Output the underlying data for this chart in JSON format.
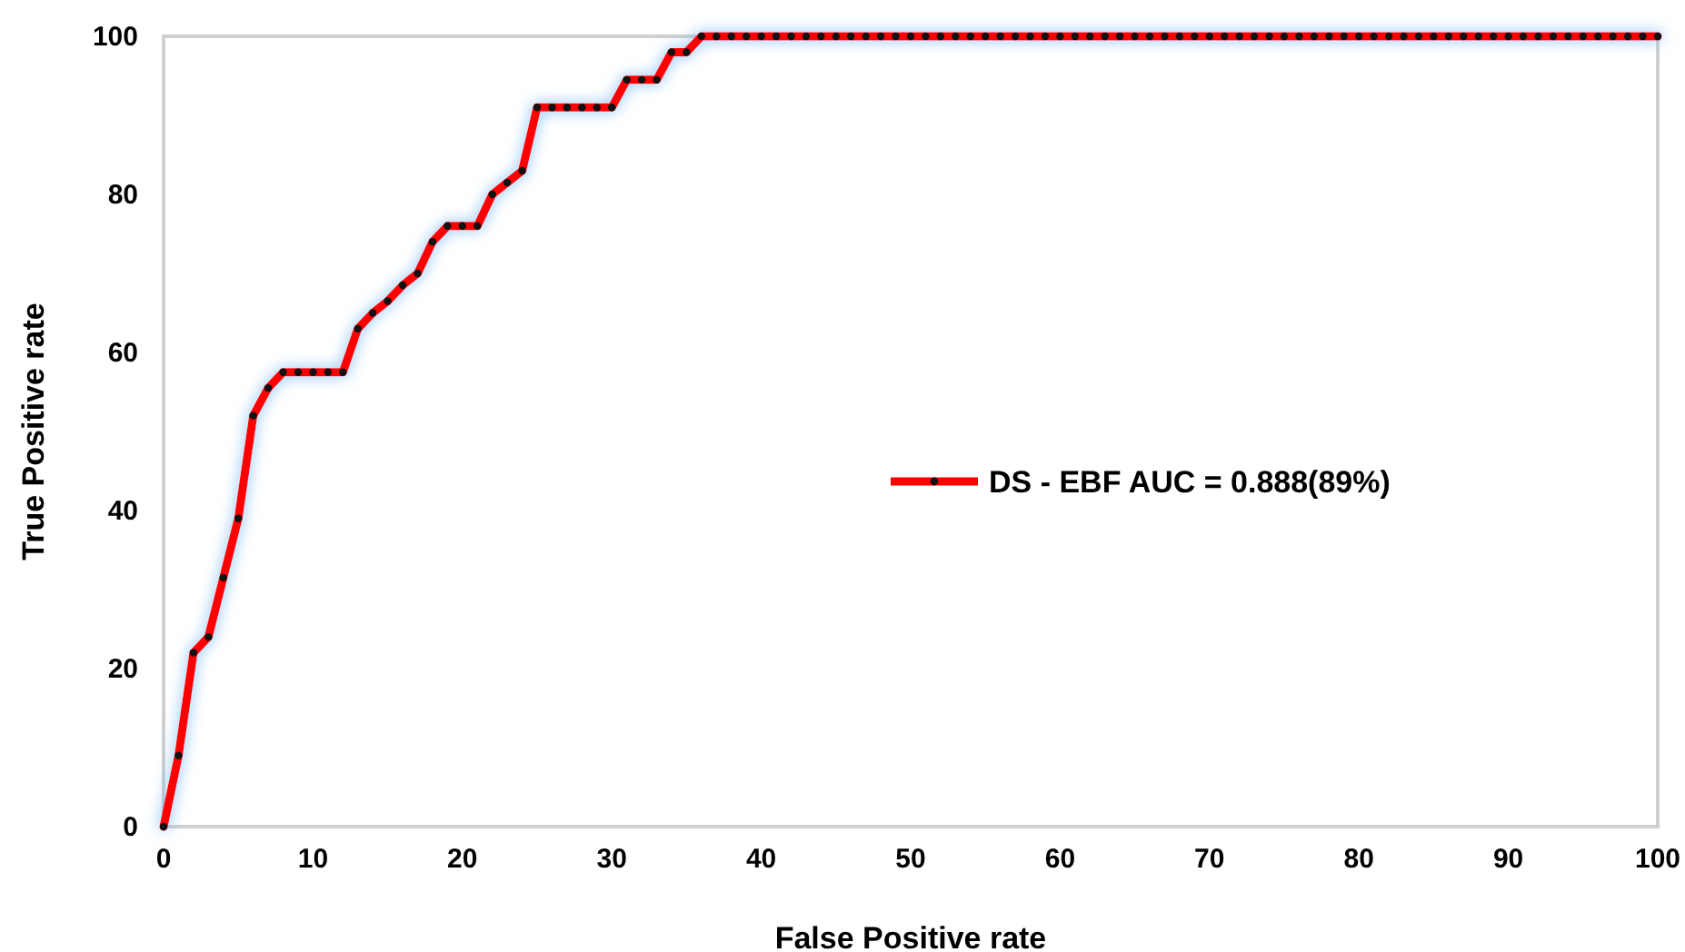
{
  "chart_data": {
    "type": "line",
    "xlabel": "False Positive rate",
    "ylabel": "True Positive rate",
    "x": [
      0,
      1,
      2,
      3,
      4,
      5,
      6,
      7,
      8,
      9,
      10,
      11,
      12,
      13,
      14,
      15,
      16,
      17,
      18,
      19,
      20,
      21,
      22,
      23,
      24,
      25,
      26,
      27,
      28,
      29,
      30,
      31,
      32,
      33,
      34,
      35,
      36,
      37,
      38,
      39,
      40,
      41,
      42,
      43,
      44,
      45,
      46,
      47,
      48,
      49,
      50,
      51,
      52,
      53,
      54,
      55,
      56,
      57,
      58,
      59,
      60,
      61,
      62,
      63,
      64,
      65,
      66,
      67,
      68,
      69,
      70,
      71,
      72,
      73,
      74,
      75,
      76,
      77,
      78,
      79,
      80,
      81,
      82,
      83,
      84,
      85,
      86,
      87,
      88,
      89,
      90,
      91,
      92,
      93,
      94,
      95,
      96,
      97,
      98,
      99,
      100
    ],
    "series": [
      {
        "name": "DS - EBF AUC = 0.888(89%)",
        "color": "#ff0000",
        "values": [
          0,
          9,
          22,
          24,
          31.5,
          39,
          52,
          55.5,
          57.5,
          57.5,
          57.5,
          57.5,
          57.5,
          63,
          65,
          66.5,
          68.5,
          70,
          74,
          76,
          76,
          76,
          80,
          81.5,
          83,
          91,
          91,
          91,
          91,
          91,
          91,
          94.5,
          94.5,
          94.5,
          98,
          98,
          100,
          100,
          100,
          100,
          100,
          100,
          100,
          100,
          100,
          100,
          100,
          100,
          100,
          100,
          100,
          100,
          100,
          100,
          100,
          100,
          100,
          100,
          100,
          100,
          100,
          100,
          100,
          100,
          100,
          100,
          100,
          100,
          100,
          100,
          100,
          100,
          100,
          100,
          100,
          100,
          100,
          100,
          100,
          100,
          100,
          100,
          100,
          100,
          100,
          100,
          100,
          100,
          100,
          100,
          100,
          100,
          100,
          100,
          100,
          100,
          100,
          100,
          100,
          100,
          100
        ]
      }
    ],
    "xlim": [
      0,
      100
    ],
    "xticks": [
      0,
      10,
      20,
      30,
      40,
      50,
      60,
      70,
      80,
      90,
      100
    ],
    "ylim": [
      0,
      100
    ],
    "yticks": [
      0,
      20,
      40,
      60,
      80,
      100
    ],
    "grid": false,
    "legend": "right",
    "marker": "circle",
    "line_style": "solid"
  }
}
